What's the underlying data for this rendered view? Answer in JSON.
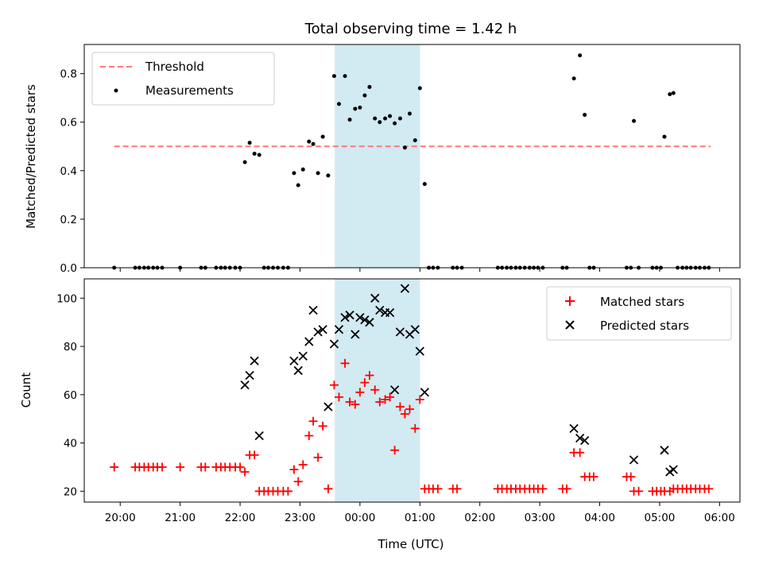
{
  "figure": {
    "title": "Total observing time = 1.42 h",
    "xlabel": "Time (UTC)",
    "top_ylabel": "Matched/Predicted stars",
    "bottom_ylabel": "Count",
    "x_tick_labels": [
      "20:00",
      "21:00",
      "22:00",
      "23:00",
      "00:00",
      "01:00",
      "02:00",
      "03:00",
      "04:00",
      "05:00",
      "06:00"
    ],
    "top_y_tick_labels": [
      "0.0",
      "0.2",
      "0.4",
      "0.6",
      "0.8"
    ],
    "bottom_y_tick_labels": [
      "20",
      "40",
      "60",
      "80",
      "100"
    ],
    "top_legend": {
      "threshold": "Threshold",
      "measurements": "Measurements"
    },
    "bottom_legend": {
      "matched": "Matched stars",
      "predicted": "Predicted stars"
    }
  },
  "chart_data": [
    {
      "type": "scatter",
      "title": "Total observing time = 1.42 h",
      "xlabel": "",
      "ylabel": "Matched/Predicted stars",
      "x_unit": "hours since 20:00 UTC",
      "xlim": [
        -0.6,
        10.34
      ],
      "ylim": [
        0,
        0.92
      ],
      "x_ticks": [
        0,
        1,
        2,
        3,
        4,
        5,
        6,
        7,
        8,
        9,
        10
      ],
      "y_ticks": [
        0,
        0.2,
        0.4,
        0.6,
        0.8
      ],
      "shaded_region": {
        "x": [
          3.58,
          5.0
        ],
        "color": "#add8e6"
      },
      "threshold": {
        "name": "Threshold",
        "y": 0.5,
        "x": [
          -0.1,
          9.85
        ],
        "color": "#ff7777"
      },
      "legend_position": "upper-left",
      "series": [
        {
          "name": "Measurements",
          "color": "#000000",
          "points": [
            [
              -0.1,
              0
            ],
            [
              0.25,
              0
            ],
            [
              0.32,
              0
            ],
            [
              0.4,
              0
            ],
            [
              0.47,
              0
            ],
            [
              0.55,
              0
            ],
            [
              0.62,
              0
            ],
            [
              0.7,
              0
            ],
            [
              1.0,
              0
            ],
            [
              1.35,
              0
            ],
            [
              1.42,
              0
            ],
            [
              1.6,
              0
            ],
            [
              1.68,
              0
            ],
            [
              1.75,
              0
            ],
            [
              1.83,
              0
            ],
            [
              1.92,
              0
            ],
            [
              2.0,
              0
            ],
            [
              2.08,
              0.435
            ],
            [
              2.16,
              0.515
            ],
            [
              2.24,
              0.47
            ],
            [
              2.32,
              0.465
            ],
            [
              2.4,
              0
            ],
            [
              2.47,
              0
            ],
            [
              2.55,
              0
            ],
            [
              2.63,
              0
            ],
            [
              2.72,
              0
            ],
            [
              2.8,
              0
            ],
            [
              2.9,
              0.39
            ],
            [
              2.97,
              0.34
            ],
            [
              3.05,
              0.405
            ],
            [
              3.15,
              0.52
            ],
            [
              3.22,
              0.51
            ],
            [
              3.3,
              0.39
            ],
            [
              3.38,
              0.54
            ],
            [
              3.47,
              0.38
            ],
            [
              3.57,
              0.79
            ],
            [
              3.65,
              0.675
            ],
            [
              3.75,
              0.79
            ],
            [
              3.83,
              0.61
            ],
            [
              3.92,
              0.655
            ],
            [
              4.0,
              0.66
            ],
            [
              4.08,
              0.71
            ],
            [
              4.16,
              0.745
            ],
            [
              4.25,
              0.615
            ],
            [
              4.33,
              0.6
            ],
            [
              4.42,
              0.615
            ],
            [
              4.5,
              0.625
            ],
            [
              4.58,
              0.595
            ],
            [
              4.67,
              0.615
            ],
            [
              4.75,
              0.495
            ],
            [
              4.83,
              0.635
            ],
            [
              4.92,
              0.525
            ],
            [
              5.0,
              0.74
            ],
            [
              5.08,
              0.345
            ],
            [
              5.15,
              0
            ],
            [
              5.22,
              0
            ],
            [
              5.3,
              0
            ],
            [
              5.55,
              0
            ],
            [
              5.62,
              0
            ],
            [
              5.7,
              0
            ],
            [
              6.3,
              0
            ],
            [
              6.37,
              0
            ],
            [
              6.45,
              0
            ],
            [
              6.52,
              0
            ],
            [
              6.6,
              0
            ],
            [
              6.67,
              0
            ],
            [
              6.75,
              0
            ],
            [
              6.83,
              0
            ],
            [
              6.9,
              0
            ],
            [
              6.97,
              0
            ],
            [
              7.05,
              0
            ],
            [
              7.38,
              0
            ],
            [
              7.45,
              0
            ],
            [
              7.57,
              0.78
            ],
            [
              7.67,
              0.875
            ],
            [
              7.75,
              0.63
            ],
            [
              7.83,
              0
            ],
            [
              7.9,
              0
            ],
            [
              8.45,
              0
            ],
            [
              8.52,
              0
            ],
            [
              8.57,
              0.605
            ],
            [
              8.65,
              0
            ],
            [
              8.88,
              0
            ],
            [
              8.95,
              0
            ],
            [
              9.02,
              0
            ],
            [
              9.08,
              0.54
            ],
            [
              9.17,
              0.715
            ],
            [
              9.23,
              0.72
            ],
            [
              9.3,
              0
            ],
            [
              9.38,
              0
            ],
            [
              9.45,
              0
            ],
            [
              9.52,
              0
            ],
            [
              9.6,
              0
            ],
            [
              9.67,
              0
            ],
            [
              9.75,
              0
            ],
            [
              9.82,
              0
            ]
          ]
        }
      ]
    },
    {
      "type": "scatter",
      "title": "",
      "xlabel": "Time (UTC)",
      "ylabel": "Count",
      "x_unit": "hours since 20:00 UTC",
      "xlim": [
        -0.6,
        10.34
      ],
      "ylim": [
        15.5,
        108
      ],
      "x_ticks": [
        0,
        1,
        2,
        3,
        4,
        5,
        6,
        7,
        8,
        9,
        10
      ],
      "y_ticks": [
        20,
        40,
        60,
        80,
        100
      ],
      "shaded_region": {
        "x": [
          3.58,
          5.0
        ],
        "color": "#add8e6"
      },
      "legend_position": "upper-right",
      "series": [
        {
          "name": "Matched stars",
          "marker": "plus",
          "color": "#ff0000",
          "points": [
            [
              -0.1,
              30
            ],
            [
              0.25,
              30
            ],
            [
              0.32,
              30
            ],
            [
              0.4,
              30
            ],
            [
              0.47,
              30
            ],
            [
              0.55,
              30
            ],
            [
              0.62,
              30
            ],
            [
              0.7,
              30
            ],
            [
              1.0,
              30
            ],
            [
              1.35,
              30
            ],
            [
              1.42,
              30
            ],
            [
              1.6,
              30
            ],
            [
              1.68,
              30
            ],
            [
              1.75,
              30
            ],
            [
              1.83,
              30
            ],
            [
              1.92,
              30
            ],
            [
              2.0,
              30
            ],
            [
              2.08,
              28
            ],
            [
              2.16,
              35
            ],
            [
              2.24,
              35
            ],
            [
              2.32,
              20
            ],
            [
              2.4,
              20
            ],
            [
              2.47,
              20
            ],
            [
              2.55,
              20
            ],
            [
              2.63,
              20
            ],
            [
              2.72,
              20
            ],
            [
              2.8,
              20
            ],
            [
              2.9,
              29
            ],
            [
              2.97,
              24
            ],
            [
              3.05,
              31
            ],
            [
              3.15,
              43
            ],
            [
              3.22,
              49
            ],
            [
              3.3,
              34
            ],
            [
              3.38,
              47
            ],
            [
              3.47,
              21
            ],
            [
              3.57,
              64
            ],
            [
              3.65,
              59
            ],
            [
              3.75,
              73
            ],
            [
              3.83,
              57
            ],
            [
              3.92,
              56
            ],
            [
              4.0,
              61
            ],
            [
              4.08,
              65
            ],
            [
              4.16,
              68
            ],
            [
              4.25,
              62
            ],
            [
              4.33,
              57
            ],
            [
              4.42,
              58
            ],
            [
              4.5,
              59
            ],
            [
              4.58,
              37
            ],
            [
              4.67,
              55
            ],
            [
              4.75,
              52
            ],
            [
              4.83,
              54
            ],
            [
              4.92,
              46
            ],
            [
              5.0,
              58
            ],
            [
              5.08,
              21
            ],
            [
              5.15,
              21
            ],
            [
              5.22,
              21
            ],
            [
              5.3,
              21
            ],
            [
              5.55,
              21
            ],
            [
              5.62,
              21
            ],
            [
              6.3,
              21
            ],
            [
              6.37,
              21
            ],
            [
              6.45,
              21
            ],
            [
              6.52,
              21
            ],
            [
              6.6,
              21
            ],
            [
              6.67,
              21
            ],
            [
              6.75,
              21
            ],
            [
              6.83,
              21
            ],
            [
              6.9,
              21
            ],
            [
              6.97,
              21
            ],
            [
              7.05,
              21
            ],
            [
              7.38,
              21
            ],
            [
              7.45,
              21
            ],
            [
              7.57,
              36
            ],
            [
              7.67,
              36
            ],
            [
              7.75,
              26
            ],
            [
              7.83,
              26
            ],
            [
              7.9,
              26
            ],
            [
              8.45,
              26
            ],
            [
              8.52,
              26
            ],
            [
              8.57,
              20
            ],
            [
              8.65,
              20
            ],
            [
              8.88,
              20
            ],
            [
              8.95,
              20
            ],
            [
              9.02,
              20
            ],
            [
              9.08,
              20
            ],
            [
              9.17,
              20
            ],
            [
              9.23,
              21
            ],
            [
              9.3,
              21
            ],
            [
              9.38,
              21
            ],
            [
              9.45,
              21
            ],
            [
              9.52,
              21
            ],
            [
              9.6,
              21
            ],
            [
              9.67,
              21
            ],
            [
              9.75,
              21
            ],
            [
              9.82,
              21
            ]
          ]
        },
        {
          "name": "Predicted stars",
          "marker": "x",
          "color": "#000000",
          "points": [
            [
              2.08,
              64
            ],
            [
              2.16,
              68
            ],
            [
              2.24,
              74
            ],
            [
              2.32,
              43
            ],
            [
              2.9,
              74
            ],
            [
              2.97,
              70
            ],
            [
              3.05,
              76
            ],
            [
              3.15,
              82
            ],
            [
              3.22,
              95
            ],
            [
              3.3,
              86
            ],
            [
              3.38,
              87
            ],
            [
              3.47,
              55
            ],
            [
              3.57,
              81
            ],
            [
              3.65,
              87
            ],
            [
              3.75,
              92
            ],
            [
              3.83,
              93
            ],
            [
              3.92,
              85
            ],
            [
              4.0,
              92
            ],
            [
              4.08,
              91
            ],
            [
              4.16,
              90
            ],
            [
              4.25,
              100
            ],
            [
              4.33,
              95
            ],
            [
              4.42,
              94
            ],
            [
              4.5,
              94
            ],
            [
              4.58,
              62
            ],
            [
              4.67,
              86
            ],
            [
              4.75,
              104
            ],
            [
              4.83,
              85
            ],
            [
              4.92,
              87
            ],
            [
              5.0,
              78
            ],
            [
              5.08,
              61
            ],
            [
              7.57,
              46
            ],
            [
              7.67,
              42
            ],
            [
              7.75,
              41
            ],
            [
              8.57,
              33
            ],
            [
              9.08,
              37
            ],
            [
              9.17,
              28
            ],
            [
              9.23,
              29
            ]
          ]
        }
      ]
    }
  ]
}
